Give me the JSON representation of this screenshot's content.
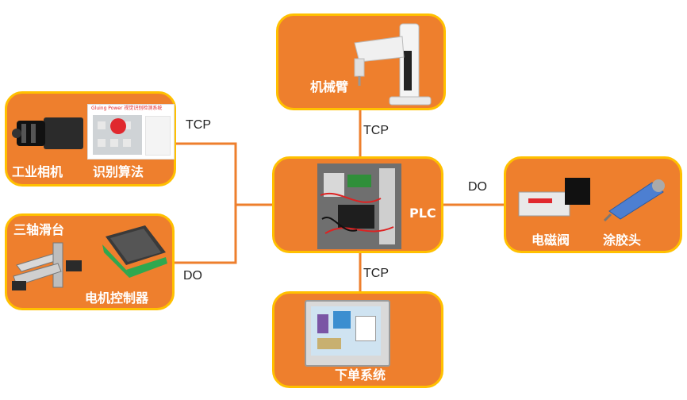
{
  "nodes": {
    "robot_arm": {
      "label": "机械臂"
    },
    "vision": {
      "label_camera": "工业相机",
      "label_algorithm": "识别算法",
      "screen_title": "Gluing Power 视觉识别检测系统"
    },
    "slide": {
      "label_slide": "三轴滑台",
      "label_controller": "电机控制器"
    },
    "plc": {
      "label": "PLC"
    },
    "valve": {
      "label_valve": "电磁阀",
      "label_head": "涂胶头"
    },
    "order": {
      "label": "下单系统"
    }
  },
  "edges": {
    "arm_plc": "TCP",
    "vision_plc": "TCP",
    "slide_plc": "DO",
    "plc_valve": "DO",
    "plc_order": "TCP"
  },
  "colors": {
    "node_fill": "#EE7F2D",
    "node_border": "#FFC000",
    "connector": "#EE7F2D"
  }
}
